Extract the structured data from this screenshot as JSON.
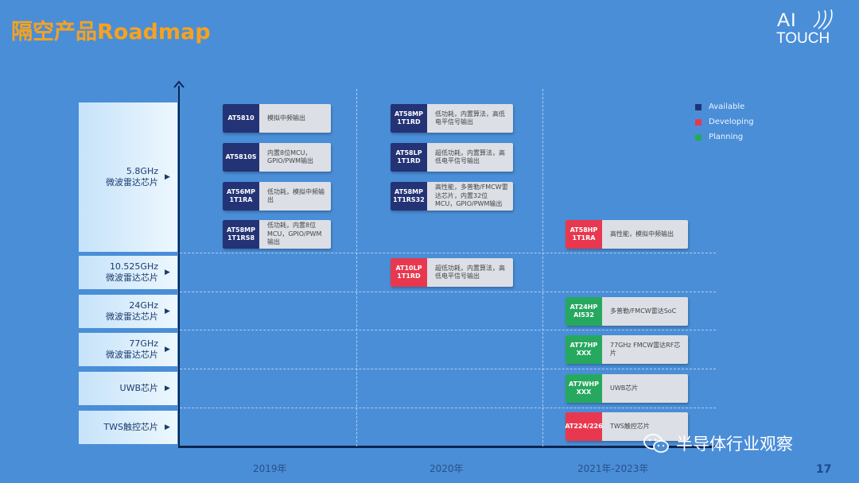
{
  "slide": {
    "title": "隔空产品Roadmap",
    "page_number": "17"
  },
  "logo": {
    "top": "AI",
    "bottom": "TOUCH"
  },
  "legend": [
    {
      "label": "Available",
      "color": "#233375"
    },
    {
      "label": "Developing",
      "color": "#e8384f"
    },
    {
      "label": "Planning",
      "color": "#27a85f"
    }
  ],
  "categories": [
    {
      "line1": "5.8GHz",
      "line2": "微波雷达芯片"
    },
    {
      "line1": "10.525GHz",
      "line2": "微波雷达芯片"
    },
    {
      "line1": "24GHz",
      "line2": "微波雷达芯片"
    },
    {
      "line1": "77GHz",
      "line2": "微波雷达芯片"
    },
    {
      "line1": "UWB芯片",
      "line2": ""
    },
    {
      "line1": "TWS触控芯片",
      "line2": ""
    }
  ],
  "years": [
    "2019年",
    "2020年",
    "2021年-2023年"
  ],
  "products": [
    {
      "code_l1": "AT5810",
      "code_l2": "",
      "desc": "模拟中频输出",
      "status": "blue"
    },
    {
      "code_l1": "AT5810S",
      "code_l2": "",
      "desc": "内置8位MCU，GPIO/PWM输出",
      "status": "blue"
    },
    {
      "code_l1": "AT56MP",
      "code_l2": "1T1RA",
      "desc": "低功耗，模拟中频输出",
      "status": "blue"
    },
    {
      "code_l1": "AT58MP",
      "code_l2": "1T1RS8",
      "desc": "低功耗，内置8位MCU，GPIO/PWM输出",
      "status": "blue"
    },
    {
      "code_l1": "AT58MP",
      "code_l2": "1T1RD",
      "desc": "低功耗，内置算法，高低电平信号输出",
      "status": "blue"
    },
    {
      "code_l1": "AT58LP",
      "code_l2": "1T1RD",
      "desc": "超低功耗，内置算法，高低电平信号输出",
      "status": "blue"
    },
    {
      "code_l1": "AT58MP",
      "code_l2": "1T1RS32",
      "desc": "高性能，多普勒/FMCW雷达芯片，内置32位MCU，GPIO/PWM输出",
      "status": "blue"
    },
    {
      "code_l1": "AT10LP",
      "code_l2": "1T1RD",
      "desc": "超低功耗，内置算法，高低电平信号输出",
      "status": "red"
    },
    {
      "code_l1": "AT58HP",
      "code_l2": "1T1RA",
      "desc": "高性能，模拟中频输出",
      "status": "red"
    },
    {
      "code_l1": "AT24HP",
      "code_l2": "AI532",
      "desc": "多普勒/FMCW雷达SoC",
      "status": "green"
    },
    {
      "code_l1": "AT77HP",
      "code_l2": "XXX",
      "desc": "77GHz FMCW雷达RF芯片",
      "status": "green"
    },
    {
      "code_l1": "AT7WHP",
      "code_l2": "XXX",
      "desc": "UWB芯片",
      "status": "green"
    },
    {
      "code_l1": "AT224/226",
      "code_l2": "",
      "desc": "TWS触控芯片",
      "status": "red"
    }
  ],
  "watermark": {
    "text": "半导体行业观察",
    "icon": "wechat-icon"
  }
}
